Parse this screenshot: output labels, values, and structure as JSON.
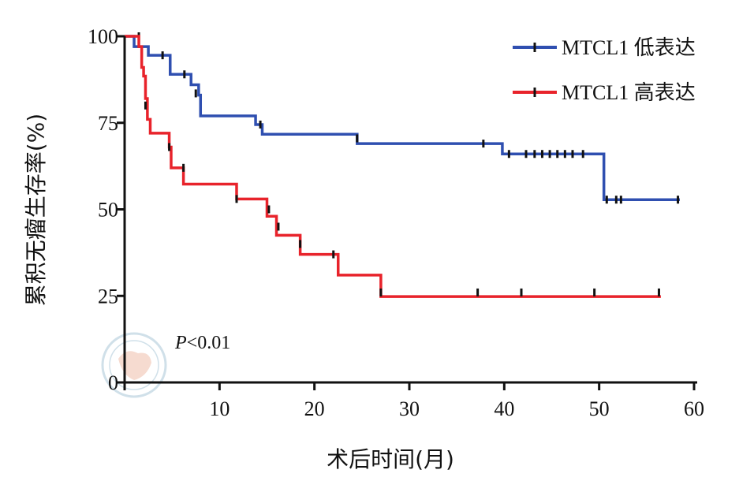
{
  "chart_data": {
    "type": "line",
    "subtype": "kaplan-meier-step",
    "title": "",
    "xlabel": "术后时间(月)",
    "ylabel": "累积无瘤生存率(%)",
    "xlim": [
      0,
      60
    ],
    "ylim": [
      0,
      100
    ],
    "x_ticks": [
      0,
      10,
      20,
      30,
      40,
      50,
      60
    ],
    "y_ticks": [
      0,
      25,
      50,
      75,
      100
    ],
    "x_tick_labels": [
      "10",
      "20",
      "30",
      "40",
      "50",
      "60"
    ],
    "y_tick_labels": [
      "0",
      "25",
      "50",
      "75",
      "100"
    ],
    "grid": false,
    "legend_position": "top-right",
    "annotation": "P<0.01",
    "series": [
      {
        "name": "MTCL1 低表达",
        "color": "#2f4fb0",
        "steps": [
          [
            0,
            100
          ],
          [
            1,
            97
          ],
          [
            2.5,
            94.5
          ],
          [
            4.8,
            89
          ],
          [
            7,
            86
          ],
          [
            7.8,
            83
          ],
          [
            8,
            77
          ],
          [
            13.8,
            74.5
          ],
          [
            14.5,
            71.7
          ],
          [
            24.5,
            69
          ],
          [
            39.8,
            66
          ],
          [
            50.5,
            52.8
          ],
          [
            58.5,
            52.8
          ]
        ],
        "censored": [
          [
            1.5,
            100
          ],
          [
            4,
            94.5
          ],
          [
            6.3,
            89
          ],
          [
            7.5,
            83.5
          ],
          [
            14.3,
            74.5
          ],
          [
            24.5,
            70.5
          ],
          [
            37.8,
            69
          ],
          [
            40.5,
            66
          ],
          [
            42.3,
            66
          ],
          [
            43.2,
            66
          ],
          [
            44,
            66
          ],
          [
            44.8,
            66
          ],
          [
            45.6,
            66
          ],
          [
            46.4,
            66
          ],
          [
            47.2,
            66
          ],
          [
            48.3,
            66
          ],
          [
            50.8,
            52.8
          ],
          [
            51.8,
            52.8
          ],
          [
            52.3,
            52.8
          ],
          [
            58.3,
            52.8
          ]
        ]
      },
      {
        "name": "MTCL1 高表达",
        "color": "#e8232b",
        "steps": [
          [
            0,
            100
          ],
          [
            1.5,
            97
          ],
          [
            1.8,
            91
          ],
          [
            2,
            88.5
          ],
          [
            2.2,
            82
          ],
          [
            2.4,
            76
          ],
          [
            2.7,
            72
          ],
          [
            4.7,
            68
          ],
          [
            4.9,
            62
          ],
          [
            6.2,
            57.3
          ],
          [
            11.8,
            53
          ],
          [
            15,
            48
          ],
          [
            16,
            42.5
          ],
          [
            18.5,
            37
          ],
          [
            22.5,
            31
          ],
          [
            27,
            24.8
          ],
          [
            56.5,
            24.8
          ]
        ],
        "censored": [
          [
            2.2,
            80
          ],
          [
            4.7,
            68
          ],
          [
            6.2,
            62
          ],
          [
            11.8,
            53
          ],
          [
            15.2,
            50
          ],
          [
            16.2,
            45
          ],
          [
            18.5,
            40
          ],
          [
            22,
            37
          ],
          [
            27,
            26
          ],
          [
            37.2,
            26
          ],
          [
            41.8,
            26
          ],
          [
            49.5,
            26
          ],
          [
            56.3,
            26
          ]
        ]
      }
    ]
  }
}
